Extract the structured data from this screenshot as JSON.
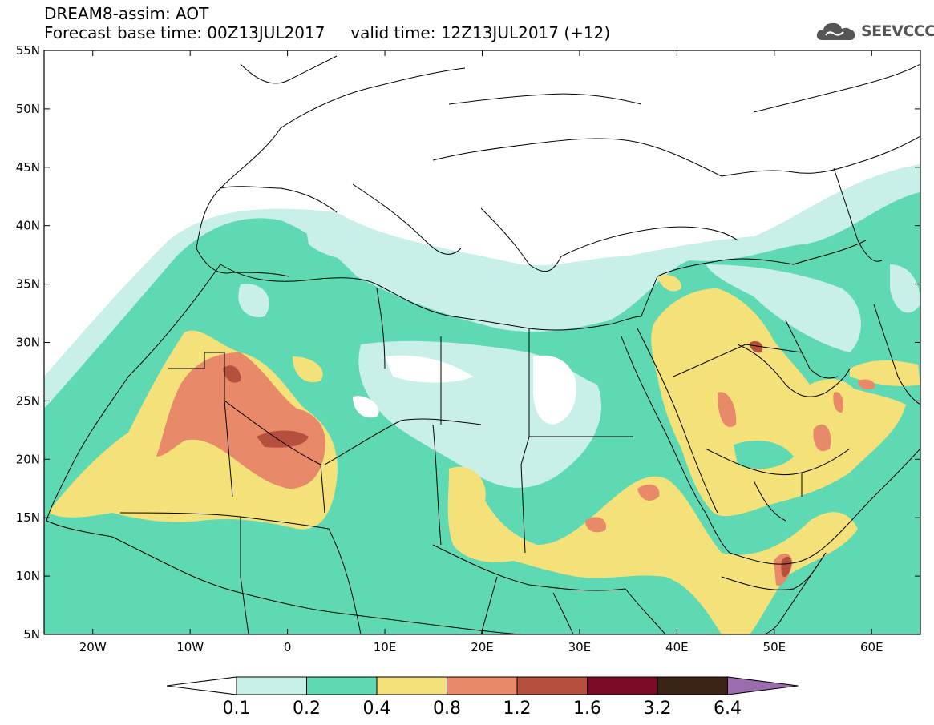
{
  "header": {
    "title": "DREAM8-assim: AOT",
    "forecast_base": "Forecast base time: 00Z13JUL2017",
    "valid_time": "valid time: 12Z13JUL2017 (+12)"
  },
  "logo": {
    "text": "SEEVCCC",
    "icon": "cloud-icon"
  },
  "map": {
    "variable": "AOT",
    "lat_range": [
      5,
      55
    ],
    "lon_range": [
      -25,
      65
    ],
    "lat_labels": [
      "55N",
      "50N",
      "45N",
      "40N",
      "35N",
      "30N",
      "25N",
      "20N",
      "15N",
      "10N",
      "5N"
    ],
    "lon_labels": [
      "20W",
      "10W",
      "0",
      "10E",
      "20E",
      "30E",
      "40E",
      "50E",
      "60E"
    ]
  },
  "colorbar": {
    "labels": [
      "0.1",
      "0.2",
      "0.4",
      "0.8",
      "1.2",
      "1.6",
      "3.2",
      "6.4"
    ],
    "colors": [
      "#ffffff",
      "#c8f0e8",
      "#5ed9b3",
      "#f5e179",
      "#e8896a",
      "#b5503f",
      "#7a0c25",
      "#3b2416",
      "#9b6db0"
    ]
  }
}
